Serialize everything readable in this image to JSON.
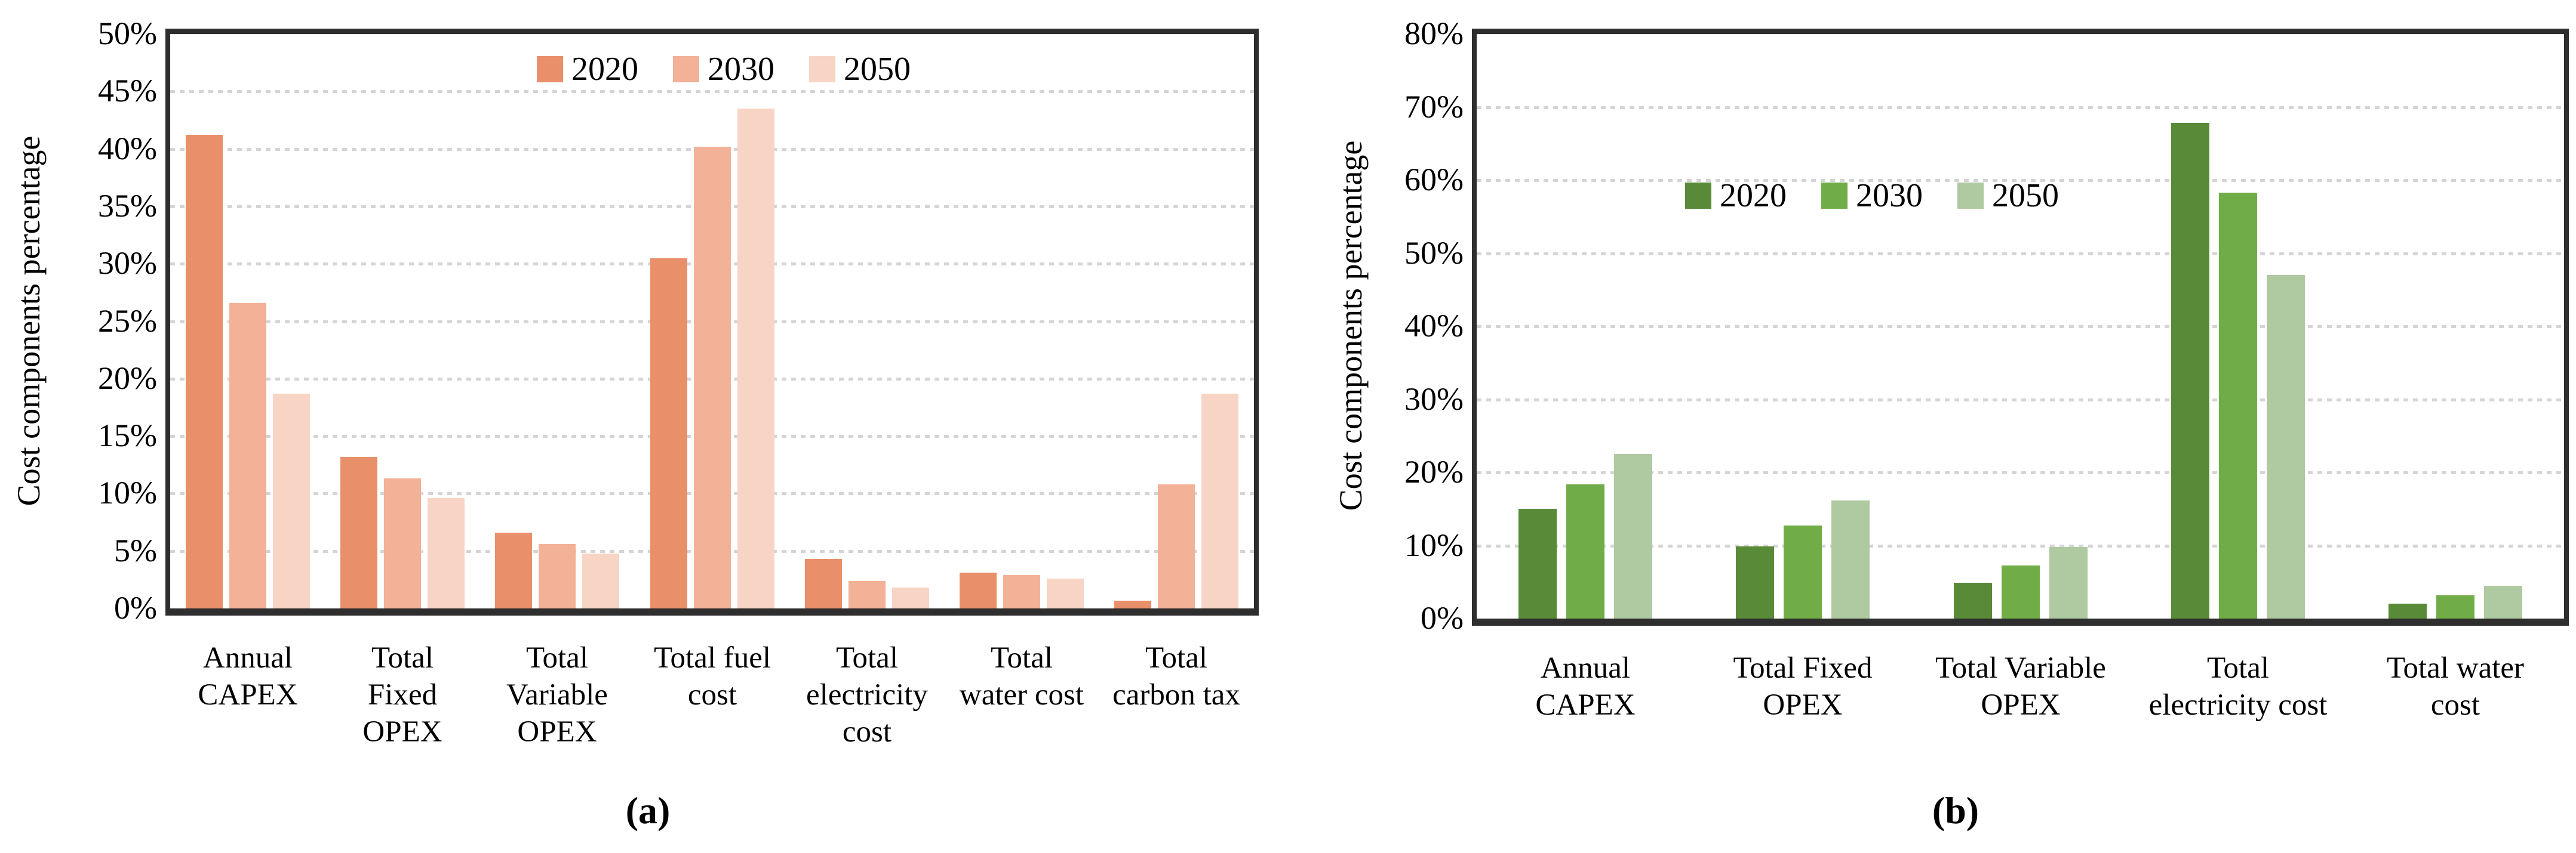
{
  "figure": {
    "panel_a_label": "(a)",
    "panel_b_label": "(b)"
  },
  "chart_data": [
    {
      "panel": "a",
      "type": "bar",
      "title": "",
      "xlabel": "",
      "ylabel": "Cost components percentage",
      "ylim": [
        0,
        50
      ],
      "ytick_step": 5,
      "ytick_suffix": "%",
      "grid": "horizontal-dotted",
      "legend_position": "inside-top-center",
      "legend_entries": [
        "2020",
        "2030",
        "2050"
      ],
      "categories": [
        "Annual CAPEX",
        "Total Fixed OPEX",
        "Total Variable OPEX",
        "Total fuel cost",
        "Total electricity cost",
        "Total water cost",
        "Total carbon tax"
      ],
      "category_label_lines": [
        "Annual\nCAPEX",
        "Total\nFixed\nOPEX",
        "Total\nVariable\nOPEX",
        "Total fuel\ncost",
        "Total\nelectricity\ncost",
        "Total\nwater cost",
        "Total\ncarbon tax"
      ],
      "series": [
        {
          "name": "2020",
          "color": "#E98F6A",
          "values": [
            41.2,
            13.2,
            6.6,
            30.5,
            4.3,
            3.1,
            0.7
          ]
        },
        {
          "name": "2030",
          "color": "#F3B197",
          "values": [
            26.6,
            11.3,
            5.6,
            40.2,
            2.4,
            2.9,
            10.8
          ]
        },
        {
          "name": "2050",
          "color": "#F8D4C4",
          "values": [
            18.7,
            9.6,
            4.8,
            43.5,
            1.8,
            2.6,
            18.7
          ]
        }
      ]
    },
    {
      "panel": "b",
      "type": "bar",
      "title": "",
      "xlabel": "",
      "ylabel": "Cost components percentage",
      "ylim": [
        0,
        80
      ],
      "ytick_step": 10,
      "ytick_suffix": "%",
      "grid": "horizontal-dotted",
      "legend_position": "inside-upper-center",
      "legend_entries": [
        "2020",
        "2030",
        "2050"
      ],
      "categories": [
        "Annual CAPEX",
        "Total Fixed OPEX",
        "Total Variable OPEX",
        "Total electricity cost",
        "Total water cost"
      ],
      "category_label_lines": [
        "Annual\nCAPEX",
        "Total Fixed\nOPEX",
        "Total Variable\nOPEX",
        "Total\nelectricity cost",
        "Total water\ncost"
      ],
      "series": [
        {
          "name": "2020",
          "color": "#588A38",
          "values": [
            15.0,
            9.9,
            4.9,
            67.8,
            2.0
          ]
        },
        {
          "name": "2030",
          "color": "#70AD47",
          "values": [
            18.4,
            12.7,
            7.3,
            58.3,
            3.2
          ]
        },
        {
          "name": "2050",
          "color": "#AFC9A0",
          "values": [
            22.5,
            16.2,
            9.8,
            47.0,
            4.5
          ]
        }
      ]
    }
  ],
  "style": {
    "gridline_color": "#D5D5D5",
    "frame_color": "#2E2E2E",
    "text_color": "#000000"
  }
}
